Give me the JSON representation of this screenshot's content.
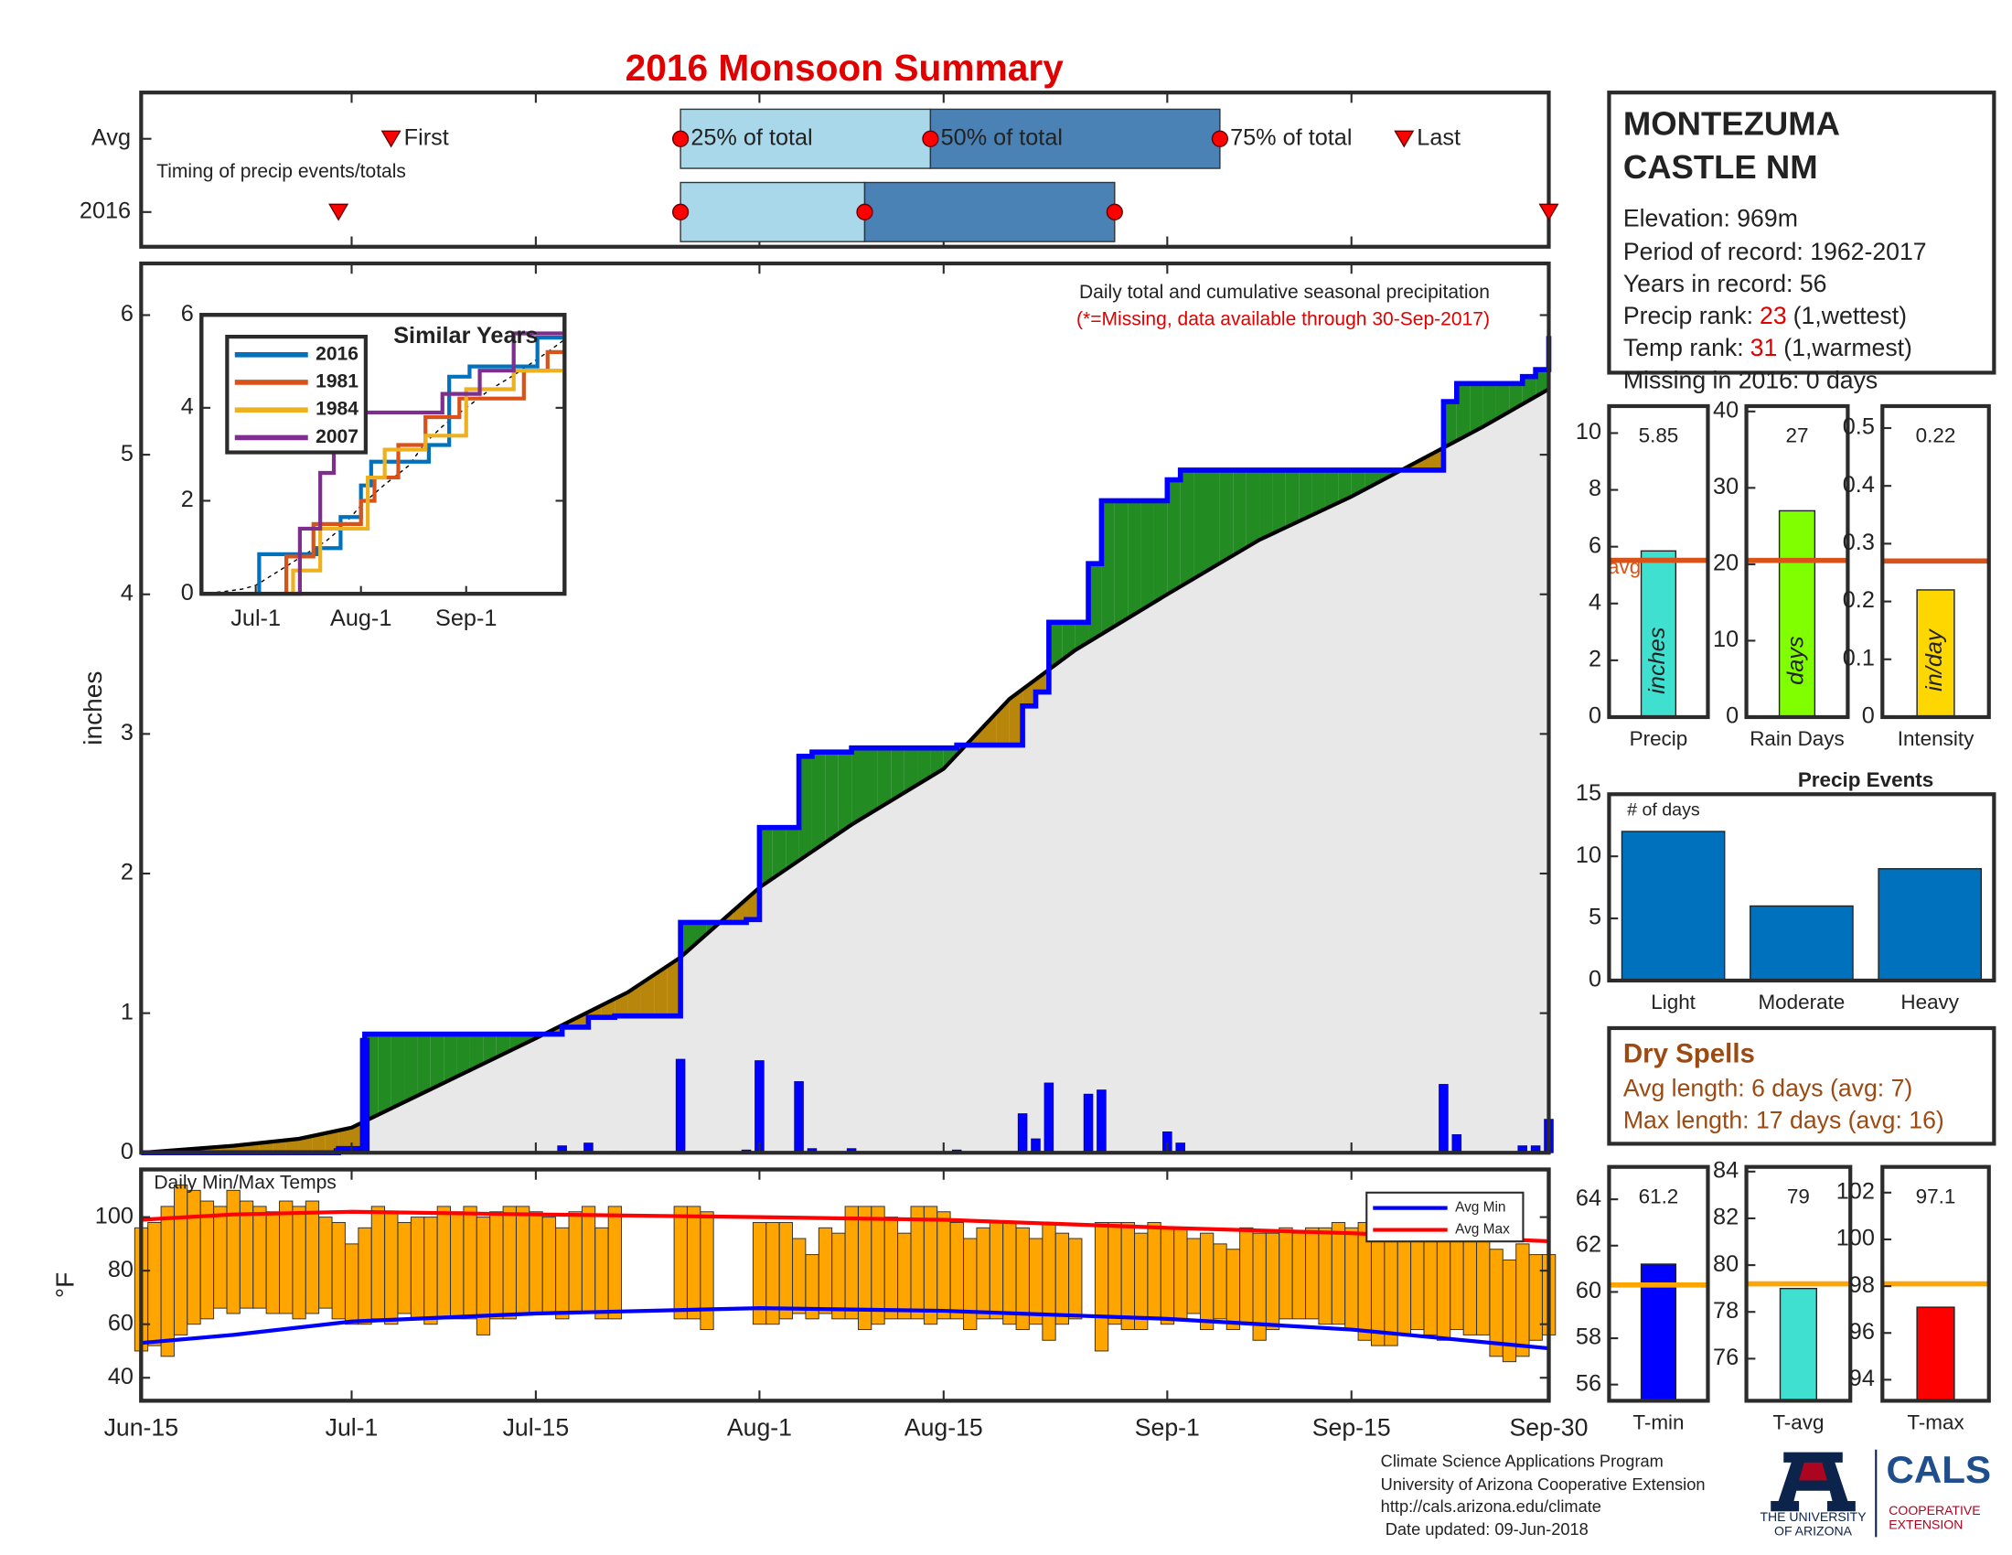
{
  "title": "2016 Monsoon Summary",
  "station": {
    "title_lines": [
      "MONTEZUMA",
      "CASTLE NM"
    ],
    "facts": [
      "Elevation: 969m",
      "Period of record: 1962-2017",
      "Years in record: 56"
    ],
    "ranks": [
      {
        "label": "Precip rank:",
        "value": 23,
        "note": "(1,wettest)"
      },
      {
        "label": "Temp rank:",
        "value": 31,
        "note": "(1,warmest)"
      }
    ],
    "rank_color": "#e00000",
    "missing": "Missing in 2016: 0 days"
  },
  "dry_spells": {
    "title": "Dry Spells",
    "lines": [
      "Avg length: 6 days (avg: 7)",
      "Max length: 17 days (avg: 16)"
    ],
    "color": "#9c4a12"
  },
  "footer": {
    "lines": [
      "Climate Science Applications Program",
      "University of Arizona Cooperative Extension",
      "http://cals.arizona.edu/climate",
      " Date updated: 09-Jun-2018"
    ],
    "university": [
      "THE UNIVERSITY",
      "OF ARIZONA"
    ],
    "cals": "CALS",
    "extension": [
      "COOPERATIVE",
      "EXTENSION"
    ]
  },
  "chart_data": [
    {
      "type": "timing",
      "note": "Timing of precip events/totals",
      "markers": [
        "First",
        "25% of total",
        "50% of total",
        "75% of total",
        "Last"
      ],
      "colors": [
        "#a9d8ea",
        "#4a82b6"
      ],
      "marker_color": "#ff0000",
      "rows": [
        {
          "name": "Avg",
          "values": [
            "Jul-4",
            "Jul-26",
            "Aug-14",
            "Sep-5",
            "Sep-19"
          ]
        },
        {
          "name": "2016",
          "values": [
            "Jun-30",
            "Jul-26",
            "Aug-9",
            "Aug-28",
            "Sep-30"
          ]
        }
      ]
    },
    {
      "type": "cumulative",
      "title": "Daily total and cumulative seasonal precipitation",
      "note": "(*=Missing, data available through 30-Sep-2017)",
      "note_color": "#e00000",
      "ylabel": "inches",
      "ylim": [
        0,
        6.37
      ],
      "yticks": [
        0,
        1,
        2,
        3,
        4,
        5,
        6
      ],
      "above_color": "#228b22",
      "below_color": "#b8860b",
      "area_color": "#e8e8e8",
      "series": [
        {
          "color": "#0000ff",
          "x": [
            "Jun-30",
            "Jul-2",
            "Jul-17",
            "Jul-19",
            "Jul-21",
            "Jul-26",
            "Jul-31",
            "Aug-1",
            "Aug-4",
            "Aug-5",
            "Aug-8",
            "Aug-16",
            "Aug-21",
            "Aug-22",
            "Aug-23",
            "Aug-26",
            "Aug-27",
            "Sep-1",
            "Sep-2",
            "Sep-22",
            "Sep-23",
            "Sep-28",
            "Sep-29",
            "Sep-30"
          ],
          "values": [
            0.03,
            0.82,
            0.05,
            0.07,
            0.01,
            0.67,
            0.02,
            0.66,
            0.51,
            0.03,
            0.03,
            0.02,
            0.28,
            0.1,
            0.5,
            0.42,
            0.45,
            0.15,
            0.07,
            0.49,
            0.13,
            0.05,
            0.05,
            0.24
          ]
        },
        {
          "color": "#000000",
          "x": [
            "Jun-15",
            "Jun-22",
            "Jun-27",
            "Jul-1",
            "Jul-8",
            "Jul-15",
            "Jul-22",
            "Jul-26",
            "Aug-1",
            "Aug-8",
            "Aug-15",
            "Aug-20",
            "Aug-25",
            "Sep-1",
            "Sep-8",
            "Sep-15",
            "Sep-20",
            "Sep-25",
            "Sep-30"
          ],
          "values": [
            0,
            0.05,
            0.1,
            0.18,
            0.5,
            0.82,
            1.15,
            1.4,
            1.9,
            2.35,
            2.75,
            3.25,
            3.6,
            4.0,
            4.39,
            4.7,
            4.95,
            5.2,
            5.47
          ]
        }
      ]
    },
    {
      "type": "line",
      "title": "Similar Years",
      "xlim": [
        "Jun-15",
        "Sep-30"
      ],
      "xticks": [
        "Jul-1",
        "Aug-1",
        "Sep-1"
      ],
      "ylim": [
        0,
        6
      ],
      "yticks": [
        0,
        2,
        4,
        6
      ],
      "series": [
        {
          "name": "2016",
          "color": "#0072bd",
          "x": [
            "Jun-15",
            "Jul-2",
            "Jul-19",
            "Jul-26",
            "Aug-1",
            "Aug-4",
            "Aug-21",
            "Aug-27",
            "Sep-2",
            "Sep-22",
            "Sep-30"
          ],
          "values": [
            0,
            0.85,
            0.98,
            1.65,
            2.33,
            2.84,
            3.2,
            4.67,
            4.89,
            5.51,
            5.85
          ]
        },
        {
          "name": "1981",
          "color": "#d95319",
          "x": [
            "Jun-15",
            "Jul-10",
            "Jul-18",
            "Aug-1",
            "Aug-5",
            "Aug-12",
            "Aug-20",
            "Aug-30",
            "Sep-18",
            "Sep-25",
            "Sep-30"
          ],
          "values": [
            0,
            0.8,
            1.5,
            2.0,
            2.5,
            3.2,
            3.8,
            4.2,
            4.8,
            5.2,
            5.3
          ]
        },
        {
          "name": "1984",
          "color": "#edb120",
          "x": [
            "Jun-15",
            "Jul-12",
            "Jul-20",
            "Aug-3",
            "Aug-8",
            "Aug-20",
            "Sep-1",
            "Sep-15",
            "Sep-30"
          ],
          "values": [
            0,
            0.5,
            1.4,
            2.5,
            3.1,
            3.4,
            4.4,
            4.8,
            5.1
          ]
        },
        {
          "name": "2007",
          "color": "#7e2f8e",
          "x": [
            "Jun-15",
            "Jul-14",
            "Jul-20",
            "Jul-24",
            "Jul-28",
            "Aug-25",
            "Sep-5",
            "Sep-15",
            "Sep-30"
          ],
          "values": [
            0,
            1.4,
            2.6,
            3.5,
            3.9,
            4.3,
            4.8,
            5.6,
            5.9
          ]
        }
      ]
    },
    {
      "type": "range_bar",
      "title": "Daily Min/Max Temps",
      "ylabel": "°F",
      "ylim": [
        31.4,
        117.8
      ],
      "yticks": [
        40,
        60,
        80,
        100
      ],
      "xlim": [
        "Jun-15",
        "Sep-30"
      ],
      "xticks": [
        "Jun-15",
        "Jul-1",
        "Jul-15",
        "Aug-1",
        "Aug-15",
        "Sep-1",
        "Sep-15",
        "Sep-30"
      ],
      "x": [
        "Jun-15",
        "Jun-16",
        "Jun-17",
        "Jun-18",
        "Jun-19",
        "Jun-20",
        "Jun-21",
        "Jun-22",
        "Jun-23",
        "Jun-24",
        "Jun-25",
        "Jun-26",
        "Jun-27",
        "Jun-28",
        "Jun-29",
        "Jun-30",
        "Jul-1",
        "Jul-2",
        "Jul-3",
        "Jul-4",
        "Jul-5",
        "Jul-6",
        "Jul-7",
        "Jul-8",
        "Jul-9",
        "Jul-10",
        "Jul-11",
        "Jul-12",
        "Jul-13",
        "Jul-14",
        "Jul-15",
        "Jul-16",
        "Jul-17",
        "Jul-18",
        "Jul-19",
        "Jul-20",
        "Jul-21",
        "Jul-22",
        "Jul-23",
        "Jul-24",
        "Jul-25",
        "Jul-26",
        "Jul-27",
        "Jul-28",
        "Jul-29",
        "Jul-30",
        "Jul-31",
        "Aug-1",
        "Aug-2",
        "Aug-3",
        "Aug-4",
        "Aug-5",
        "Aug-6",
        "Aug-7",
        "Aug-8",
        "Aug-9",
        "Aug-10",
        "Aug-11",
        "Aug-12",
        "Aug-13",
        "Aug-14",
        "Aug-15",
        "Aug-16",
        "Aug-17",
        "Aug-18",
        "Aug-19",
        "Aug-20",
        "Aug-21",
        "Aug-22",
        "Aug-23",
        "Aug-24",
        "Aug-25",
        "Aug-26",
        "Aug-27",
        "Aug-28",
        "Aug-29",
        "Aug-30",
        "Aug-31",
        "Sep-1",
        "Sep-2",
        "Sep-3",
        "Sep-4",
        "Sep-5",
        "Sep-6",
        "Sep-7",
        "Sep-8",
        "Sep-9",
        "Sep-10",
        "Sep-11",
        "Sep-12",
        "Sep-13",
        "Sep-14",
        "Sep-15",
        "Sep-16",
        "Sep-17",
        "Sep-18",
        "Sep-19",
        "Sep-20",
        "Sep-21",
        "Sep-22",
        "Sep-23",
        "Sep-24",
        "Sep-25",
        "Sep-26",
        "Sep-27",
        "Sep-28",
        "Sep-29",
        "Sep-30"
      ],
      "bars": {
        "color": "#ffa500",
        "low": [
          50,
          52,
          48,
          56,
          60,
          62,
          66,
          64,
          66,
          66,
          64,
          64,
          62,
          64,
          66,
          62,
          60,
          60,
          62,
          60,
          64,
          62,
          60,
          62,
          62,
          62,
          56,
          62,
          62,
          64,
          64,
          64,
          62,
          64,
          64,
          62,
          62,
          null,
          null,
          null,
          null,
          62,
          62,
          58,
          null,
          null,
          null,
          60,
          60,
          62,
          64,
          62,
          64,
          62,
          62,
          58,
          60,
          62,
          62,
          62,
          60,
          62,
          62,
          58,
          62,
          62,
          60,
          58,
          60,
          54,
          60,
          62,
          null,
          50,
          60,
          58,
          58,
          62,
          60,
          62,
          64,
          58,
          62,
          58,
          60,
          54,
          58,
          62,
          62,
          62,
          60,
          60,
          58,
          54,
          52,
          52,
          56,
          58,
          56,
          54,
          58,
          56,
          56,
          48,
          46,
          48,
          54,
          56
        ],
        "high": [
          96,
          98,
          104,
          112,
          110,
          106,
          104,
          110,
          106,
          104,
          102,
          106,
          104,
          106,
          100,
          98,
          90,
          96,
          104,
          102,
          98,
          100,
          100,
          104,
          102,
          104,
          100,
          102,
          104,
          104,
          102,
          100,
          96,
          102,
          104,
          96,
          104,
          null,
          null,
          null,
          null,
          104,
          104,
          102,
          null,
          null,
          null,
          98,
          98,
          98,
          92,
          86,
          96,
          94,
          104,
          104,
          104,
          100,
          94,
          104,
          104,
          102,
          98,
          92,
          96,
          98,
          98,
          96,
          92,
          98,
          94,
          92,
          null,
          98,
          98,
          98,
          94,
          98,
          96,
          96,
          92,
          94,
          90,
          88,
          96,
          94,
          94,
          96,
          94,
          96,
          96,
          98,
          96,
          98,
          98,
          96,
          96,
          94,
          92,
          96,
          92,
          94,
          94,
          88,
          84,
          90,
          86,
          86
        ]
      },
      "series": [
        {
          "name": "Avg Min",
          "color": "#0000ff",
          "x": [
            "Jun-15",
            "Jun-22",
            "Jul-1",
            "Jul-15",
            "Aug-1",
            "Aug-15",
            "Sep-1",
            "Sep-15",
            "Sep-30"
          ],
          "values": [
            53,
            56,
            61,
            64,
            66,
            65,
            62,
            58,
            51
          ]
        },
        {
          "name": "Avg Max",
          "color": "#ff0000",
          "x": [
            "Jun-15",
            "Jun-22",
            "Jul-1",
            "Jul-15",
            "Aug-1",
            "Aug-15",
            "Sep-1",
            "Sep-15",
            "Sep-30"
          ],
          "values": [
            99,
            101,
            102,
            101,
            100,
            99,
            96,
            94,
            91
          ]
        }
      ]
    },
    {
      "type": "bar",
      "categories": [
        "Precip"
      ],
      "values": [
        5.85
      ],
      "color": "#40e0d0",
      "avg": 5.52,
      "avg_color": "#d95319",
      "avg_label": "avg",
      "bar_label": "inches",
      "show_values": true,
      "ylim": [
        0,
        10.95
      ],
      "yticks": [
        0,
        2,
        4,
        6,
        8,
        10
      ]
    },
    {
      "type": "bar",
      "categories": [
        "Rain Days"
      ],
      "values": [
        27
      ],
      "color": "#7fff00",
      "avg": 20.5,
      "avg_color": "#d95319",
      "bar_label": "days",
      "show_values": true,
      "ylim": [
        0,
        40.7
      ],
      "yticks": [
        0,
        10,
        20,
        30,
        40
      ]
    },
    {
      "type": "bar",
      "categories": [
        "Intensity"
      ],
      "values": [
        0.22
      ],
      "color": "#ffd700",
      "avg": 0.27,
      "avg_color": "#d95319",
      "bar_label": "in/day",
      "show_values": true,
      "ylim": [
        0,
        0.538
      ],
      "yticks": [
        0,
        0.1,
        0.2,
        0.3,
        0.4,
        0.5
      ]
    },
    {
      "type": "bar",
      "title": "Precip Events",
      "annotation": "# of days",
      "categories": [
        "Light",
        "Moderate",
        "Heavy"
      ],
      "values": [
        12,
        6,
        9
      ],
      "color": "#0072bd",
      "ylim": [
        0,
        15
      ],
      "yticks": [
        0,
        5,
        10,
        15
      ]
    },
    {
      "type": "bar",
      "categories": [
        "T-min"
      ],
      "values": [
        61.2
      ],
      "color": "#0000ff",
      "avg": 60.3,
      "avg_color": "#ffa500",
      "show_values": true,
      "ylim": [
        55.3,
        65.4
      ],
      "yticks": [
        56,
        58,
        60,
        62,
        64
      ]
    },
    {
      "type": "bar",
      "categories": [
        "T-avg"
      ],
      "values": [
        79
      ],
      "color": "#40e0d0",
      "avg": 79.2,
      "avg_color": "#ffa500",
      "show_values": true,
      "ylim": [
        74.2,
        84.2
      ],
      "yticks": [
        76,
        78,
        80,
        82,
        84
      ]
    },
    {
      "type": "bar",
      "categories": [
        "T-max"
      ],
      "values": [
        97.1
      ],
      "color": "#ff0000",
      "avg": 98.1,
      "avg_color": "#ffa500",
      "show_values": true,
      "ylim": [
        93.1,
        103.1
      ],
      "yticks": [
        94,
        96,
        98,
        100,
        102
      ]
    }
  ]
}
